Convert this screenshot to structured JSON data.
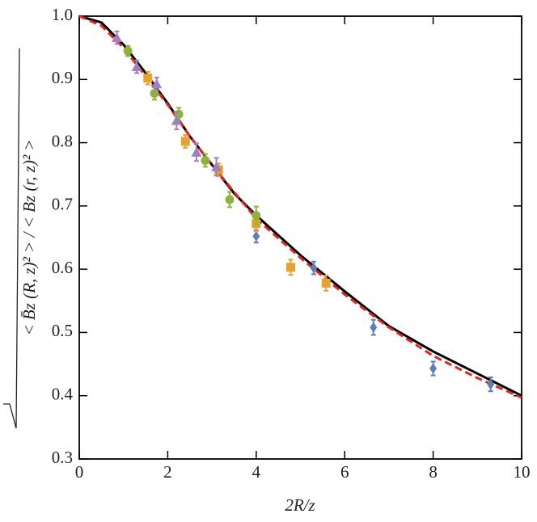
{
  "chart_data": {
    "type": "scatter",
    "x_label": "2R/z",
    "y_label": "< B̄z (R, z)² >  /  < Bz (r, z)² >",
    "xlim": [
      0,
      10
    ],
    "ylim": [
      0.3,
      1.0
    ],
    "xticks": [
      0,
      2,
      4,
      6,
      8,
      10
    ],
    "yticks": [
      0.3,
      0.4,
      0.5,
      0.6,
      0.7,
      0.8,
      0.9,
      {
        "value": 1.0,
        "label": "1.0"
      }
    ],
    "series": [
      {
        "mode": "line",
        "color": "#000000",
        "dash": false,
        "x": [
          0,
          0.5,
          1,
          1.5,
          2,
          2.5,
          3,
          3.5,
          4,
          5,
          6,
          7,
          8,
          9,
          10
        ],
        "values": [
          1.0,
          0.99,
          0.955,
          0.91,
          0.862,
          0.81,
          0.765,
          0.72,
          0.685,
          0.622,
          0.565,
          0.51,
          0.47,
          0.435,
          0.4
        ]
      },
      {
        "mode": "line",
        "color": "#e8231f",
        "dash": true,
        "x": [
          0,
          0.5,
          1,
          1.5,
          2,
          2.5,
          3,
          3.5,
          4,
          5,
          6,
          7,
          8,
          9,
          10
        ],
        "values": [
          1.0,
          0.985,
          0.95,
          0.905,
          0.86,
          0.81,
          0.765,
          0.722,
          0.68,
          0.618,
          0.56,
          0.508,
          0.463,
          0.428,
          0.397
        ]
      },
      {
        "mode": "markers",
        "marker": "diamond",
        "color": "#5b7fb6",
        "x": [
          4.0,
          5.3,
          6.65,
          8.0,
          9.3
        ],
        "values": [
          0.652,
          0.602,
          0.508,
          0.443,
          0.418
        ],
        "errors": [
          0.01,
          0.01,
          0.012,
          0.011,
          0.011
        ]
      },
      {
        "mode": "markers",
        "marker": "square",
        "color": "#e6a22e",
        "x": [
          1.55,
          2.4,
          3.15,
          4.0,
          4.78,
          5.58
        ],
        "values": [
          0.902,
          0.802,
          0.757,
          0.672,
          0.603,
          0.578
        ],
        "errors": [
          0.01,
          0.01,
          0.01,
          0.012,
          0.012,
          0.012
        ]
      },
      {
        "mode": "markers",
        "marker": "circle",
        "color": "#8db33a",
        "x": [
          1.1,
          1.7,
          2.25,
          2.85,
          3.4,
          4.0
        ],
        "values": [
          0.945,
          0.878,
          0.845,
          0.772,
          0.71,
          0.685
        ],
        "errors": [
          0.008,
          0.01,
          0.01,
          0.01,
          0.012,
          0.014
        ]
      },
      {
        "mode": "markers",
        "marker": "triangle",
        "color": "#9c82c0",
        "x": [
          0.85,
          1.3,
          1.75,
          2.2,
          2.65,
          3.1
        ],
        "values": [
          0.966,
          0.92,
          0.893,
          0.835,
          0.785,
          0.762
        ],
        "errors": [
          0.01,
          0.01,
          0.01,
          0.014,
          0.014,
          0.014
        ]
      }
    ]
  }
}
